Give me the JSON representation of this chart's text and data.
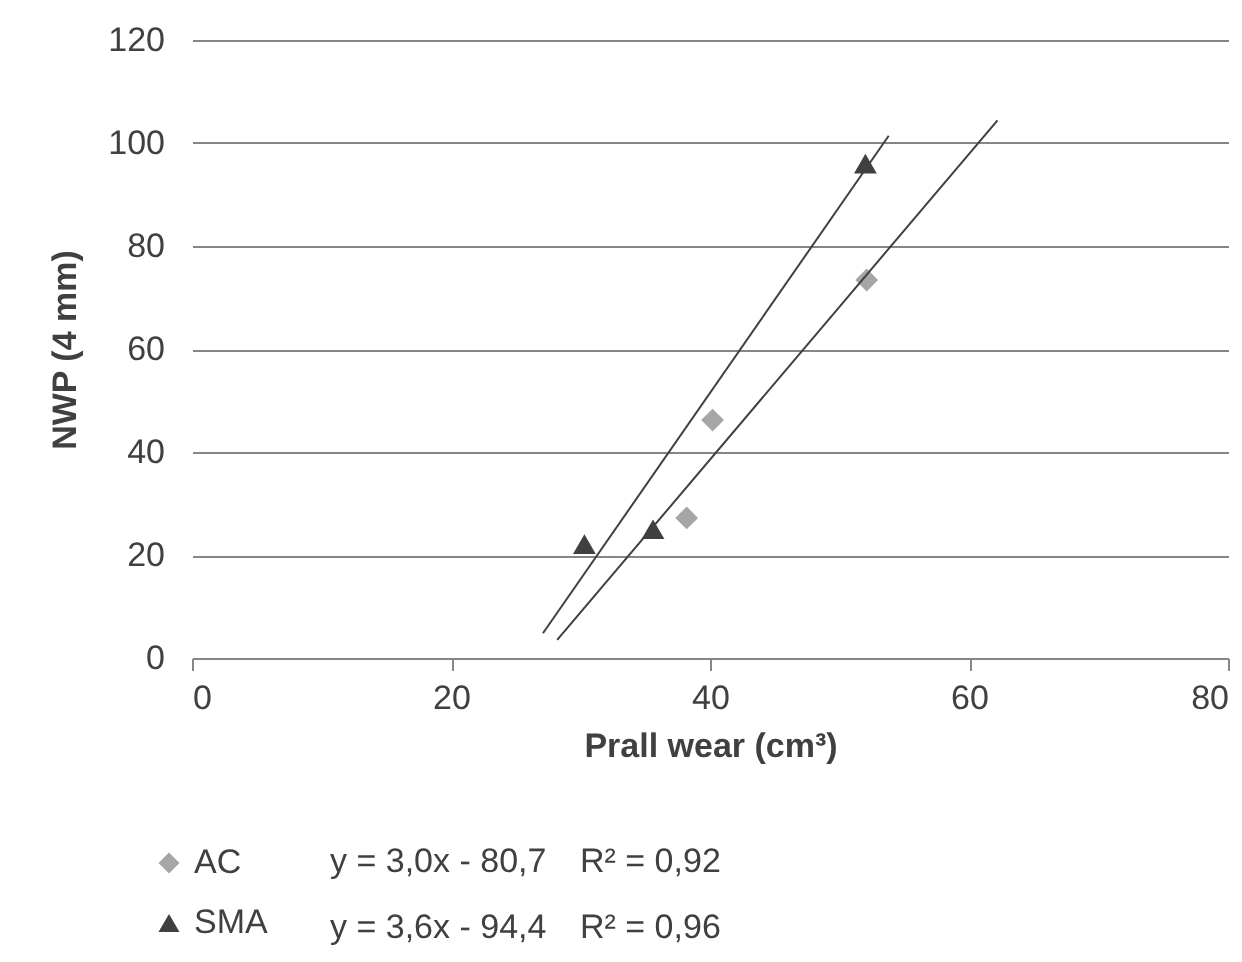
{
  "chart_data": {
    "type": "scatter",
    "xlabel": "Prall wear (cm³)",
    "ylabel": "NWP (4 mm)",
    "xlim": [
      0,
      80
    ],
    "xticks": [
      0,
      20,
      40,
      60,
      80
    ],
    "ylim": [
      0,
      120
    ],
    "yticks": [
      0,
      20,
      40,
      60,
      80,
      100,
      120
    ],
    "grid": "y",
    "legend": "bottom",
    "series": [
      {
        "name": "AC",
        "type": "scatter",
        "marker": "diamond",
        "color": "#a6a6a6",
        "x": [
          38.2,
          40.2,
          52.1
        ],
        "values": [
          27.2,
          46.2,
          73.4
        ]
      },
      {
        "name": "SMA",
        "type": "scatter",
        "marker": "triangle",
        "color": "#404040",
        "x": [
          30.3,
          35.6,
          52.0
        ],
        "values": [
          22.1,
          25.0,
          96.0
        ]
      },
      {
        "type": "line",
        "color": "#404040",
        "x": [
          28.2,
          62.2
        ],
        "values": [
          3.5,
          104.4
        ]
      },
      {
        "type": "line",
        "color": "#404040",
        "x": [
          27.1,
          53.8
        ],
        "values": [
          4.8,
          101.4
        ]
      }
    ],
    "annotations": [
      "y = 3,0x - 80,7",
      "R² = 0,92",
      "y = 3,6x - 94,4",
      "R² = 0,96"
    ]
  }
}
